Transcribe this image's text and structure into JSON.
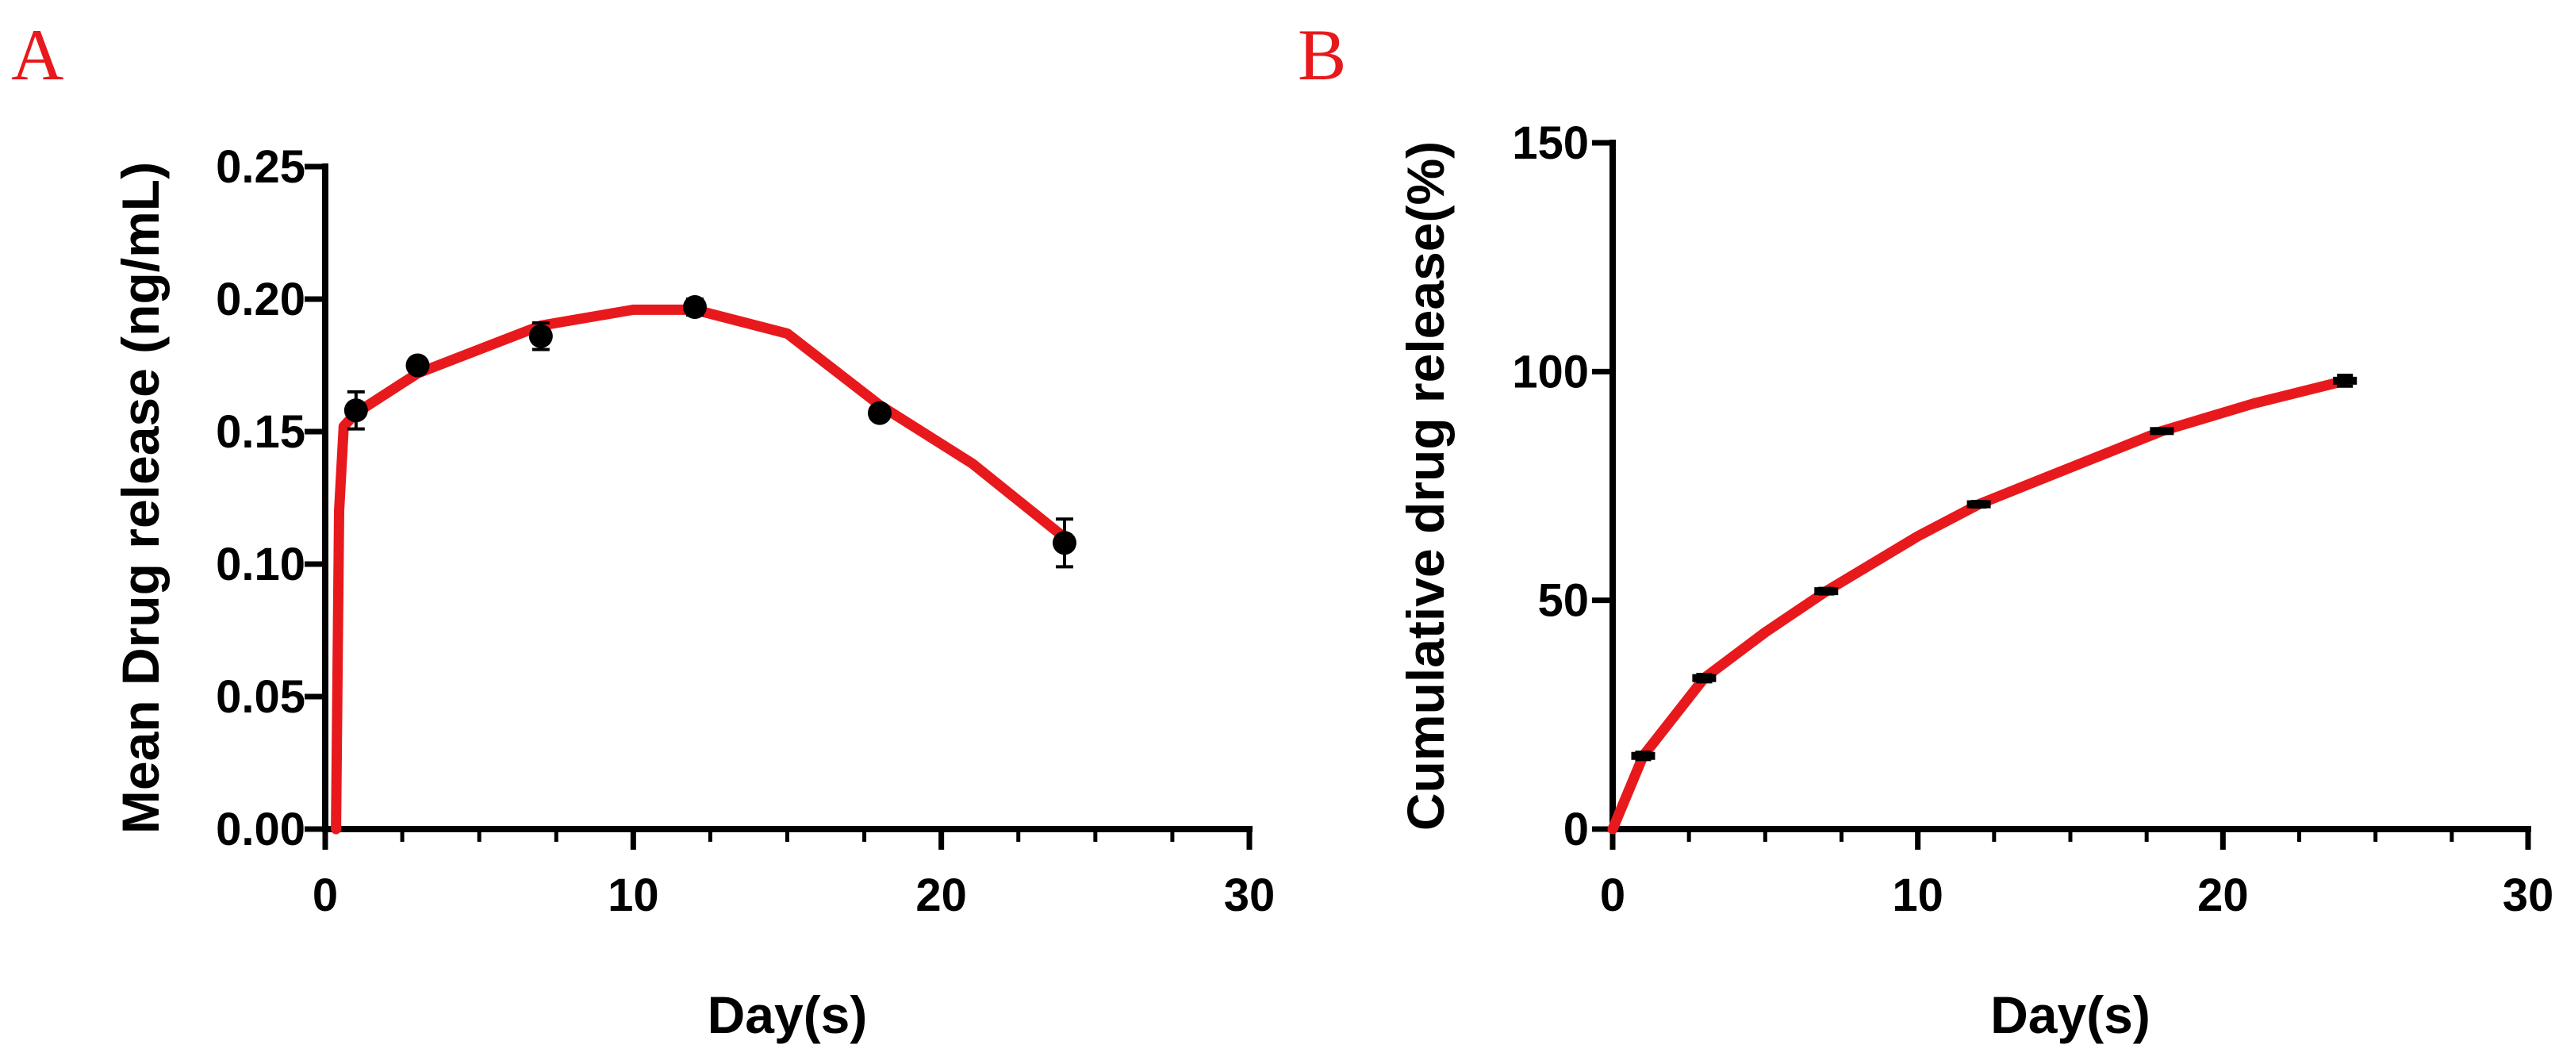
{
  "chart_data": [
    {
      "panel": "A",
      "type": "scatter",
      "xlabel": "Day(s)",
      "ylabel": "Mean Drug release (ng/mL)",
      "xlim": [
        0,
        30
      ],
      "ylim": [
        0,
        0.25
      ],
      "x_ticks": [
        "0",
        "10",
        "20",
        "30"
      ],
      "y_ticks": [
        "0.00",
        "0.05",
        "0.10",
        "0.15",
        "0.20",
        "0.25"
      ],
      "series": [
        {
          "name": "Mean Drug release",
          "marker": "circle",
          "x": [
            1,
            3,
            7,
            12,
            18,
            24
          ],
          "y": [
            0.158,
            0.175,
            0.186,
            0.197,
            0.157,
            0.108
          ],
          "error": [
            0.007,
            0.002,
            0.005,
            0.003,
            0.002,
            0.009
          ]
        }
      ],
      "fit": {
        "color": "#e8191c",
        "x": [
          0.35,
          0.45,
          0.6,
          1,
          3,
          7,
          10,
          12,
          15,
          18,
          21,
          24
        ],
        "y": [
          0,
          0.12,
          0.152,
          0.157,
          0.172,
          0.19,
          0.196,
          0.196,
          0.187,
          0.16,
          0.138,
          0.11
        ]
      }
    },
    {
      "panel": "B",
      "type": "line",
      "xlabel": "Day(s)",
      "ylabel": "Cumulative drug release(%)",
      "xlim": [
        0,
        30
      ],
      "ylim": [
        0,
        150
      ],
      "x_ticks": [
        "0",
        "10",
        "20",
        "30"
      ],
      "y_ticks": [
        "0",
        "50",
        "100",
        "150"
      ],
      "series": [
        {
          "name": "Cumulative drug release",
          "marker": "dash",
          "x": [
            1,
            3,
            7,
            12,
            18,
            24
          ],
          "y": [
            16,
            33,
            52,
            71,
            87,
            98
          ],
          "error": [
            0.8,
            0.8,
            0.6,
            0.6,
            0.5,
            1.2
          ]
        }
      ],
      "fit": {
        "color": "#e8191c",
        "x": [
          0,
          1,
          3,
          5,
          7,
          10,
          12,
          15,
          18,
          21,
          24
        ],
        "y": [
          0,
          16,
          33,
          43,
          52,
          64,
          71,
          79,
          87,
          93,
          98
        ]
      }
    }
  ]
}
